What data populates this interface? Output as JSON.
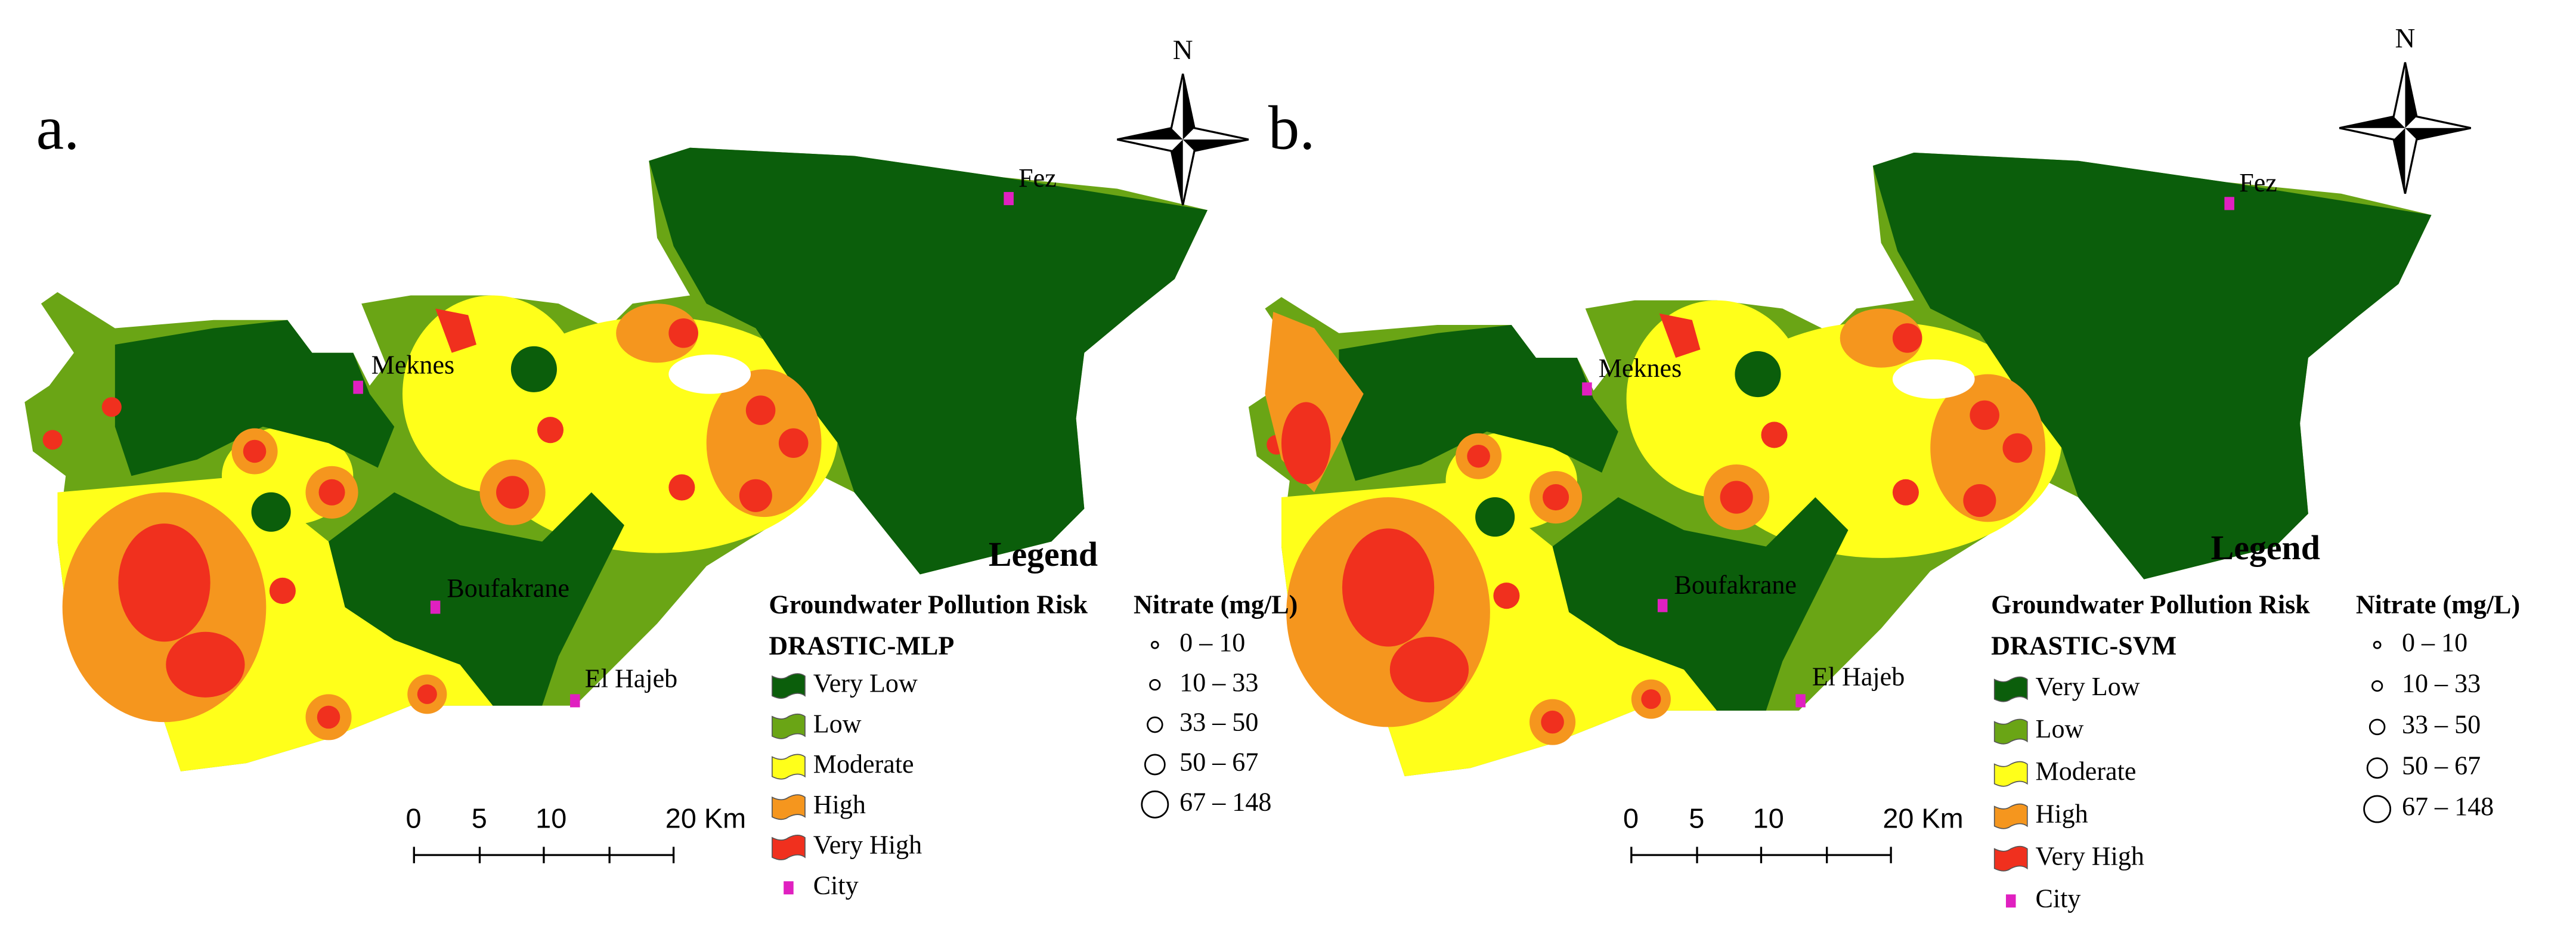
{
  "panels": [
    {
      "label": "a.",
      "north": "N",
      "cities": [
        "Fez",
        "Meknes",
        "Boufakrane",
        "El Hajeb"
      ],
      "legend": {
        "title": "Legend",
        "subtitle": "Groundwater Pollution Risk",
        "nitrate_title": "Nitrate (mg/L)",
        "model": "DRASTIC-MLP",
        "classes": [
          "Very Low",
          "Low",
          "Moderate",
          "High",
          "Very High",
          "City"
        ],
        "nitrate_ranges": [
          "0 – 10",
          "10 – 33",
          "33 – 50",
          "50 – 67",
          "67 – 148"
        ]
      },
      "scale": [
        "0",
        "5",
        "10",
        "20 Km"
      ]
    },
    {
      "label": "b.",
      "north": "N",
      "cities": [
        "Fez",
        "Meknes",
        "Boufakrane",
        "El Hajeb"
      ],
      "legend": {
        "title": "Legend",
        "subtitle": "Groundwater Pollution Risk",
        "nitrate_title": "Nitrate (mg/L)",
        "model": "DRASTIC-SVM",
        "classes": [
          "Very Low",
          "Low",
          "Moderate",
          "High",
          "Very High",
          "City"
        ],
        "nitrate_ranges": [
          "0 – 10",
          "10 – 33",
          "33 – 50",
          "50 – 67",
          "67 – 148"
        ]
      },
      "scale": [
        "0",
        "5",
        "10",
        "20 Km"
      ]
    }
  ]
}
